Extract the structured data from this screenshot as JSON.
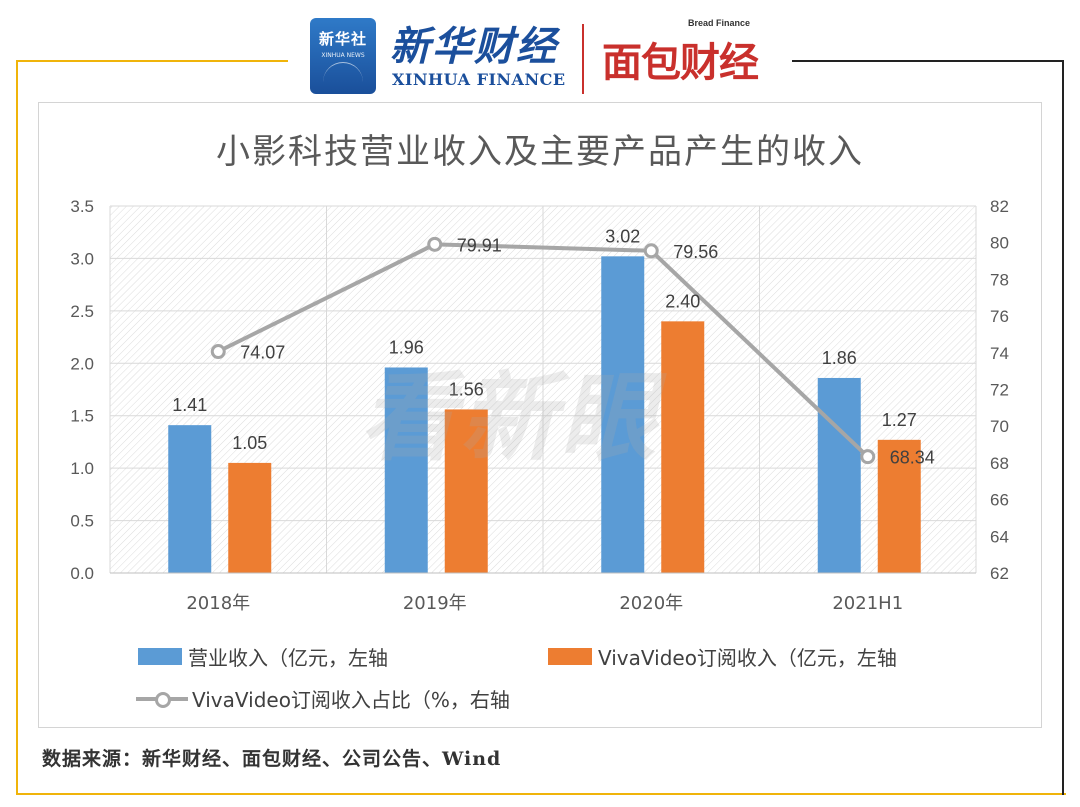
{
  "header": {
    "xinhua_badge_title": "新华社",
    "xinhua_badge_sub": "XINHUA NEWS",
    "xinhua_brand": "新华财经",
    "xinhua_en": "XINHUA FINANCE",
    "mianbao_en": "Bread Finance",
    "mianbao_cn": "面包财经"
  },
  "watermark": "看新眼",
  "source": "数据来源：新华财经、面包财经、公司公告、Wind",
  "colors": {
    "blue": "#5b9bd5",
    "orange": "#ed7d31",
    "line": "#a6a6a6"
  },
  "chart_data": {
    "type": "bar",
    "title": "小影科技营业收入及主要产品产生的收入",
    "categories": [
      "2018年",
      "2019年",
      "2020年",
      "2021H1"
    ],
    "series": [
      {
        "name": "营业收入（亿元，左轴",
        "type": "bar",
        "axis": "left",
        "values": [
          1.41,
          1.96,
          3.02,
          1.86
        ],
        "labels": [
          "1.41",
          "1.96",
          "3.02",
          "1.86"
        ]
      },
      {
        "name": "VivaVideo订阅收入（亿元，左轴",
        "type": "bar",
        "axis": "left",
        "values": [
          1.05,
          1.56,
          2.4,
          1.27
        ],
        "labels": [
          "1.05",
          "1.56",
          "2.40",
          "1.27"
        ]
      },
      {
        "name": "VivaVideo订阅收入占比（%，右轴",
        "type": "line",
        "axis": "right",
        "values": [
          74.07,
          79.91,
          79.56,
          68.34
        ],
        "labels": [
          "74.07",
          "79.91",
          "79.56",
          "68.34"
        ]
      }
    ],
    "y_left": {
      "range": [
        0,
        3.5
      ],
      "ticks": [
        "0.0",
        "0.5",
        "1.0",
        "1.5",
        "2.0",
        "2.5",
        "3.0",
        "3.5"
      ]
    },
    "y_right": {
      "range": [
        62,
        82
      ],
      "ticks": [
        "62",
        "64",
        "66",
        "68",
        "70",
        "72",
        "74",
        "76",
        "78",
        "80",
        "82"
      ]
    },
    "grid": true,
    "legend_position": "bottom"
  }
}
